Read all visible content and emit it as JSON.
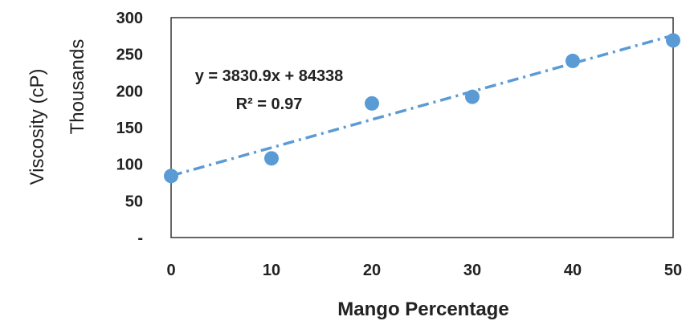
{
  "chart_data": {
    "type": "scatter",
    "xlabel": "Mango Percentage",
    "ylabel": "Viscosity (cP)",
    "ylabel_units": "Thousands",
    "x_ticks": [
      "0",
      "10",
      "20",
      "30",
      "40",
      "50"
    ],
    "y_ticks": [
      "-",
      "50",
      "100",
      "150",
      "200",
      "250",
      "300"
    ],
    "xlim": [
      0,
      50
    ],
    "ylim": [
      0,
      300
    ],
    "grid": false,
    "series": [
      {
        "x": [
          0,
          10,
          20,
          30,
          40,
          50
        ],
        "y": [
          84,
          108,
          183,
          192,
          241,
          269
        ],
        "color": "#5b9bd5"
      }
    ],
    "trendline": {
      "style": "dash-dot",
      "color": "#5b9bd5",
      "slope": 3830.9,
      "intercept": 84338,
      "equation": "y = 3830.9x + 84338",
      "r_squared": "R² = 0.97"
    }
  }
}
